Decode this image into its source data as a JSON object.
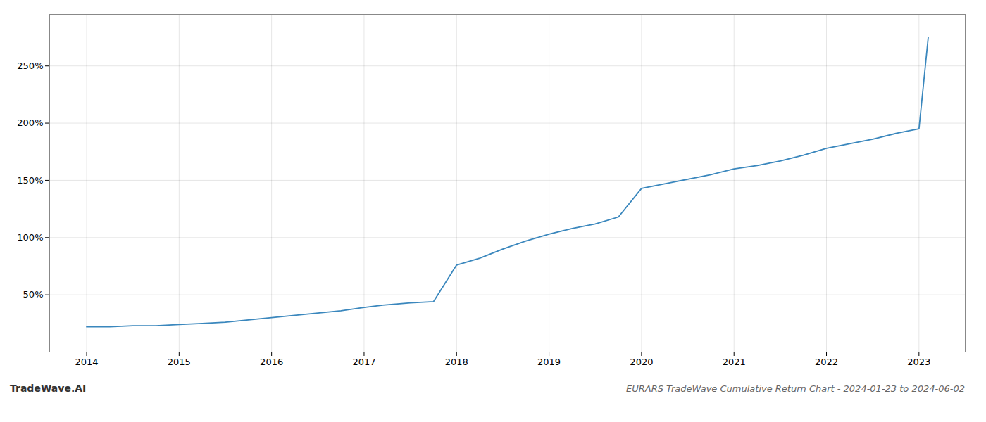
{
  "chart_data": {
    "type": "line",
    "title": "EURARS TradeWave Cumulative Return Chart - 2024-01-23 to 2024-06-02",
    "watermark": "TradeWave.AI",
    "color": "#3a87bd",
    "x": [
      2014.0,
      2014.25,
      2014.5,
      2014.75,
      2015.0,
      2015.25,
      2015.5,
      2015.75,
      2016.0,
      2016.25,
      2016.5,
      2016.75,
      2017.0,
      2017.2,
      2017.5,
      2017.75,
      2018.0,
      2018.25,
      2018.5,
      2018.75,
      2019.0,
      2019.25,
      2019.5,
      2019.75,
      2020.0,
      2020.25,
      2020.5,
      2020.75,
      2021.0,
      2021.25,
      2021.5,
      2021.75,
      2022.0,
      2022.25,
      2022.5,
      2022.75,
      2023.0,
      2023.1
    ],
    "values": [
      22,
      22,
      23,
      23,
      24,
      25,
      26,
      28,
      30,
      32,
      34,
      36,
      39,
      41,
      43,
      44,
      76,
      82,
      90,
      97,
      103,
      108,
      112,
      118,
      143,
      147,
      151,
      155,
      160,
      163,
      167,
      172,
      178,
      182,
      186,
      191,
      195,
      275
    ],
    "xlim": [
      2013.6,
      2023.5
    ],
    "ylim": [
      0,
      295
    ],
    "xticks": [
      2014,
      2015,
      2016,
      2017,
      2018,
      2019,
      2020,
      2021,
      2022,
      2023
    ],
    "yticks": [
      {
        "value": 50,
        "label": "50%"
      },
      {
        "value": 100,
        "label": "100%"
      },
      {
        "value": 150,
        "label": "150%"
      },
      {
        "value": 200,
        "label": "200%"
      },
      {
        "value": 250,
        "label": "250%"
      }
    ],
    "grid": true
  }
}
